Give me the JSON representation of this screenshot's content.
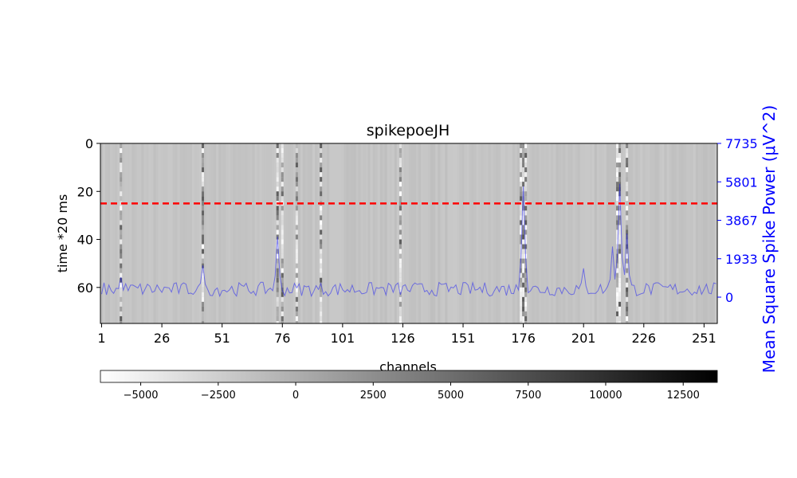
{
  "chart_data": {
    "type": "heatmap",
    "title": "spikepoeJH",
    "xlabel": "channels",
    "ylabel": "time *20 ms",
    "y2label": "Mean Square Spike Power (μV^2)",
    "x_ticks": [
      "1",
      "26",
      "51",
      "76",
      "101",
      "126",
      "151",
      "176",
      "201",
      "226",
      "251"
    ],
    "y_ticks": [
      "0",
      "20",
      "40",
      "60"
    ],
    "y2_ticks": [
      "7735",
      "5801",
      "3867",
      "1933",
      "0"
    ],
    "colorbar_ticks": [
      "−5000",
      "−2500",
      "0",
      "2500",
      "5000",
      "7500",
      "10000",
      "12500"
    ],
    "x_range": [
      1,
      256
    ],
    "y_range": [
      0,
      75
    ],
    "y2_range": [
      0,
      7735
    ],
    "colorbar_range": [
      -6300,
      13600
    ],
    "colormap": "gray_r",
    "marker_line": {
      "time": 25,
      "color": "#ff0000",
      "style": "dashed"
    },
    "power_series": {
      "color": "#0000ff",
      "baseline": 400,
      "peaks": [
        {
          "channel": 9,
          "value": 1000
        },
        {
          "channel": 43,
          "value": 1600
        },
        {
          "channel": 74,
          "value": 3050
        },
        {
          "channel": 176,
          "value": 5580
        },
        {
          "channel": 201,
          "value": 1450
        },
        {
          "channel": 213,
          "value": 2550
        },
        {
          "channel": 216,
          "value": 5700
        },
        {
          "channel": 219,
          "value": 3200
        }
      ]
    },
    "bright_channels": [
      9,
      43,
      74,
      76,
      82,
      92,
      125,
      175,
      176,
      177,
      215,
      216,
      219
    ]
  }
}
